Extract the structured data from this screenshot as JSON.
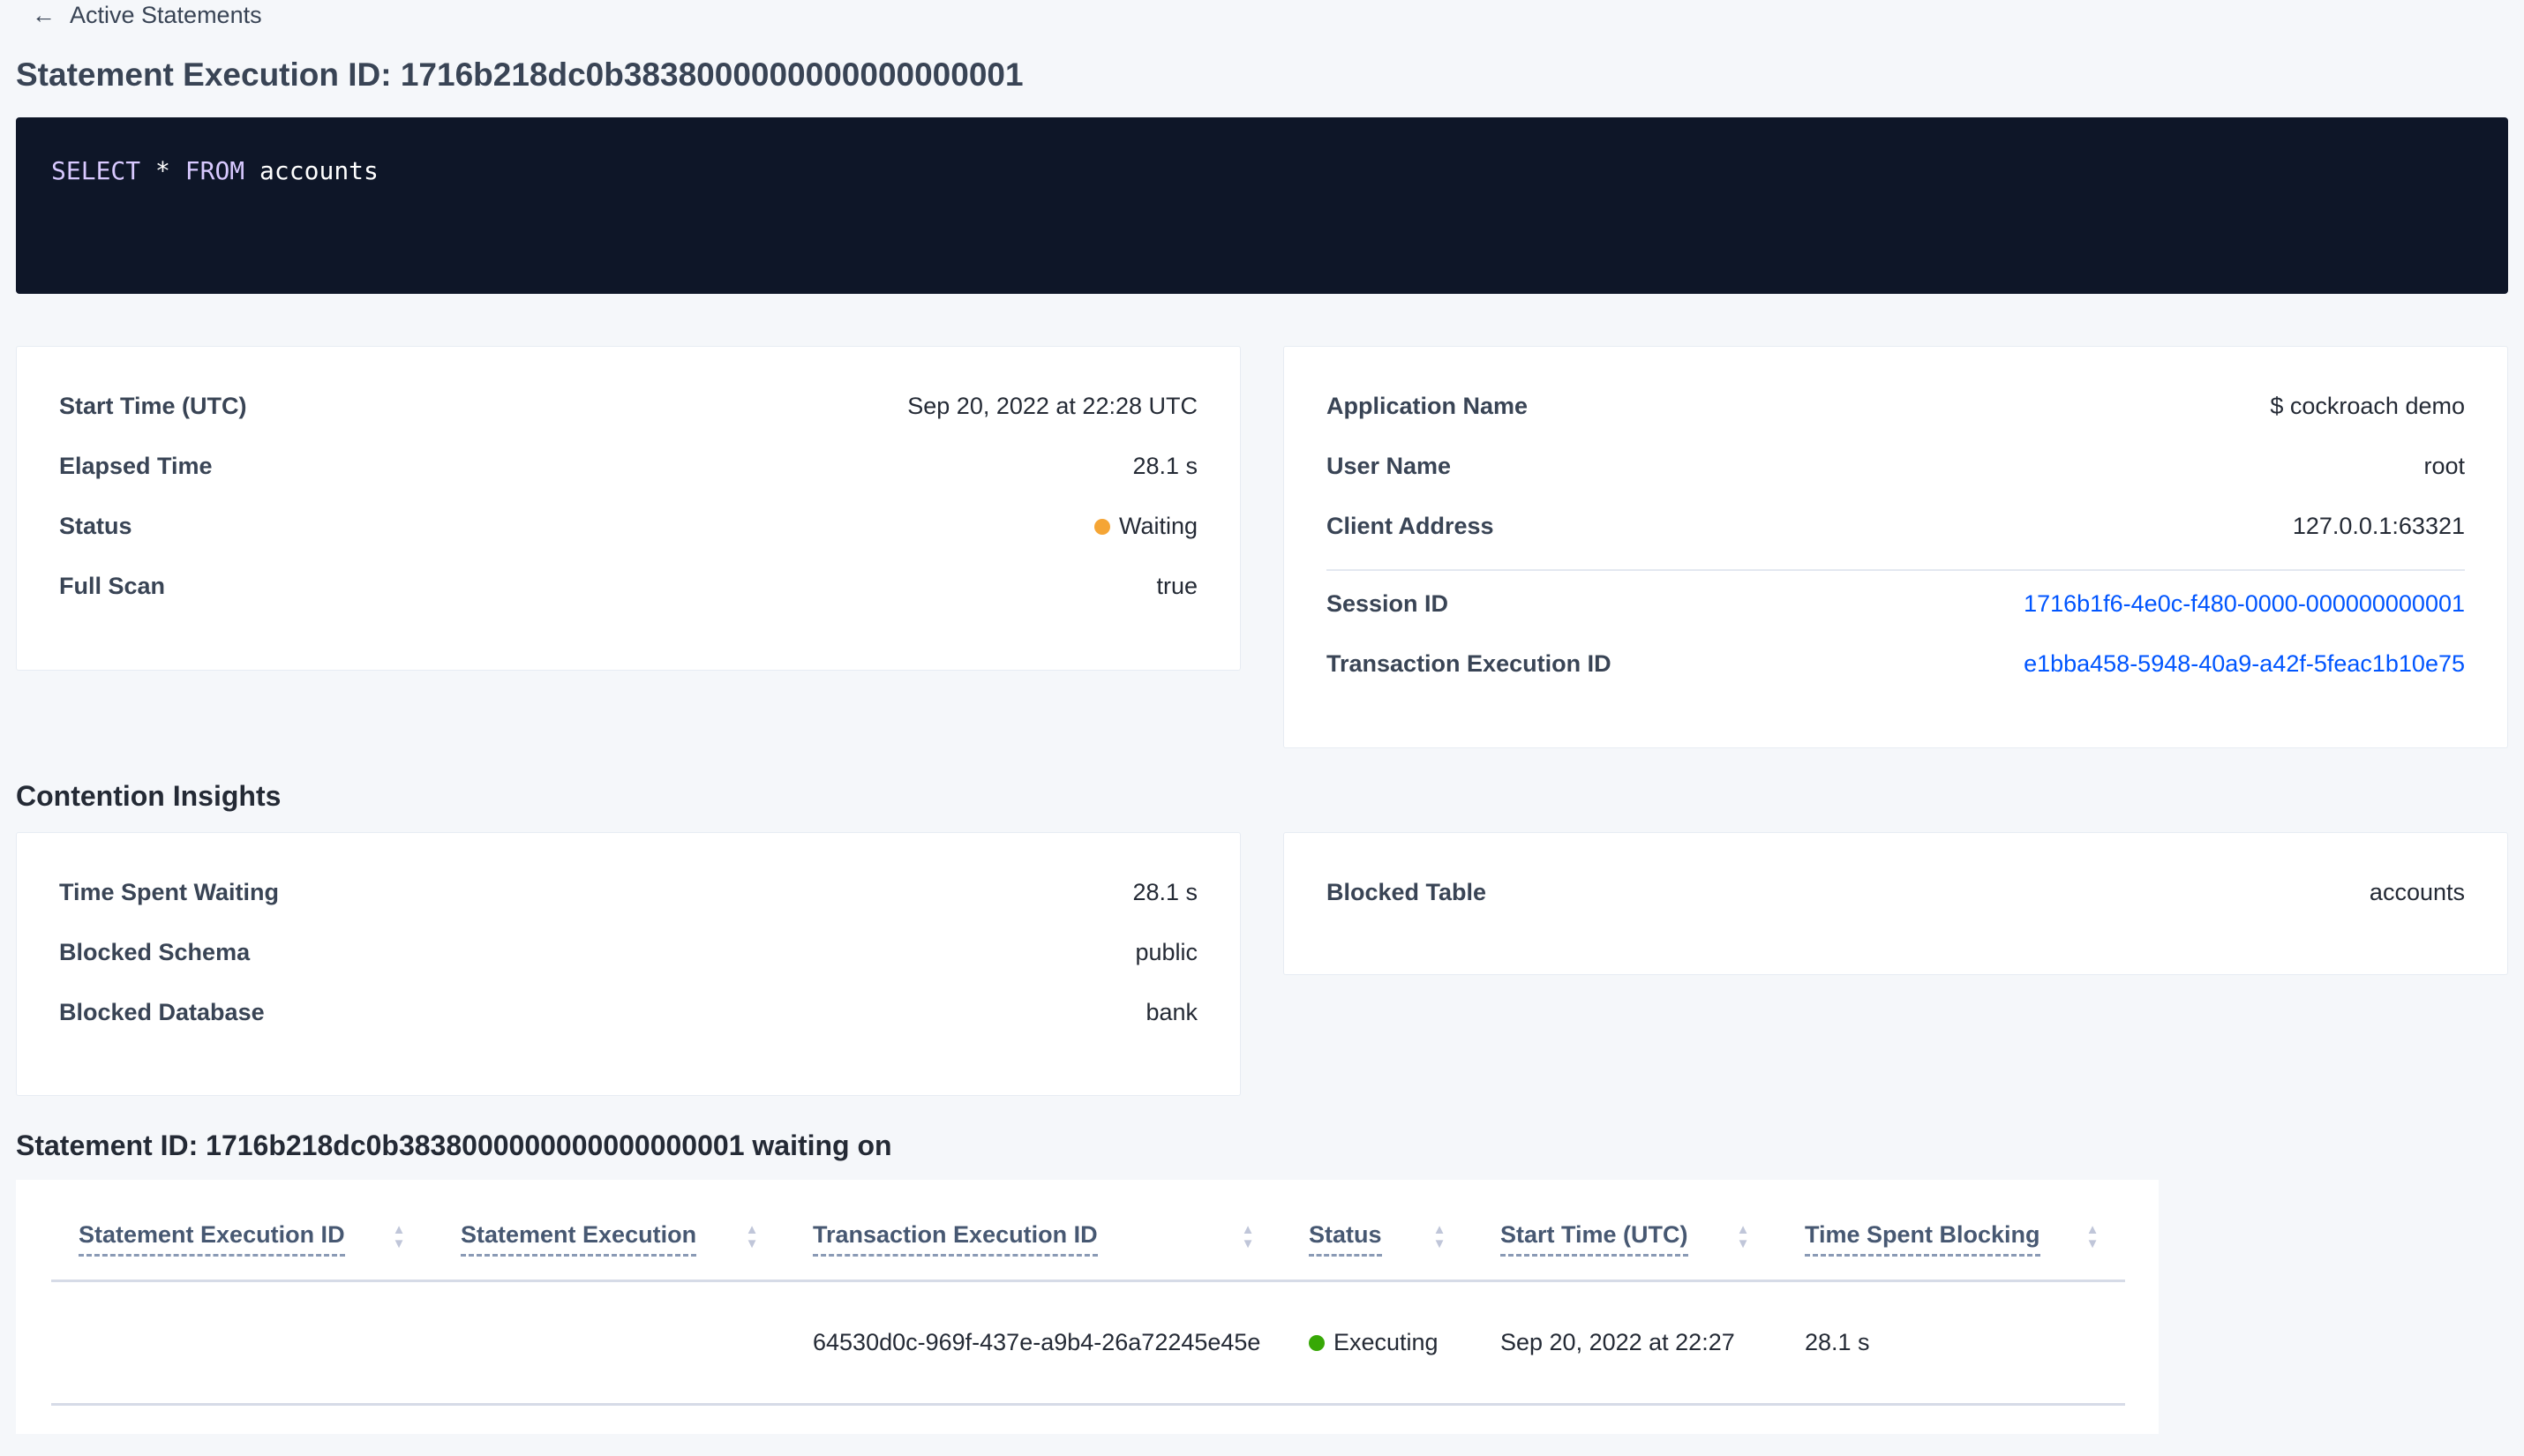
{
  "back_link": {
    "label": "Active Statements",
    "icon": "arrow-left-icon"
  },
  "title": "Statement Execution ID: 1716b218dc0b3838000000000000000001",
  "sql": {
    "keyword1": "SELECT",
    "op": "*",
    "keyword2": "FROM",
    "table": "accounts"
  },
  "overview": {
    "rows": [
      {
        "label": "Start Time (UTC)",
        "value": "Sep 20, 2022 at 22:28 UTC"
      },
      {
        "label": "Elapsed Time",
        "value": "28.1 s"
      },
      {
        "label": "Status",
        "value": "Waiting",
        "status_color": "#f5a535"
      },
      {
        "label": "Full Scan",
        "value": "true"
      }
    ]
  },
  "session": {
    "rows": [
      {
        "label": "Application Name",
        "value": "$ cockroach demo"
      },
      {
        "label": "User Name",
        "value": "root"
      },
      {
        "label": "Client Address",
        "value": "127.0.0.1:63321"
      },
      {
        "label": "Session ID",
        "value": "1716b1f6-4e0c-f480-0000-000000000001"
      },
      {
        "label": "Transaction Execution ID",
        "value": "e1bba458-5948-40a9-a42f-5feac1b10e75"
      }
    ]
  },
  "contention": {
    "heading": "Contention Insights",
    "left": [
      {
        "label": "Time Spent Waiting",
        "value": "28.1 s"
      },
      {
        "label": "Blocked Schema",
        "value": "public"
      },
      {
        "label": "Blocked Database",
        "value": "bank"
      }
    ],
    "right": [
      {
        "label": "Blocked Table",
        "value": "accounts"
      }
    ]
  },
  "waiting": {
    "heading": "Statement ID: 1716b218dc0b3838000000000000000001 waiting on",
    "columns": [
      "Statement Execution ID",
      "Statement Execution",
      "Transaction Execution ID",
      "Status",
      "Start Time (UTC)",
      "Time Spent Blocking"
    ],
    "rows": [
      {
        "statement_execution_id": "",
        "statement_execution": "",
        "transaction_execution_id": "64530d0c-969f-437e-a9b4-26a72245e45e",
        "status": "Executing",
        "status_color": "#37a806",
        "start_time": "Sep 20, 2022 at 22:27",
        "time_spent_blocking": "28.1 s"
      }
    ]
  },
  "colors": {
    "link": "#0055ff",
    "code_bg": "#0e1628"
  }
}
